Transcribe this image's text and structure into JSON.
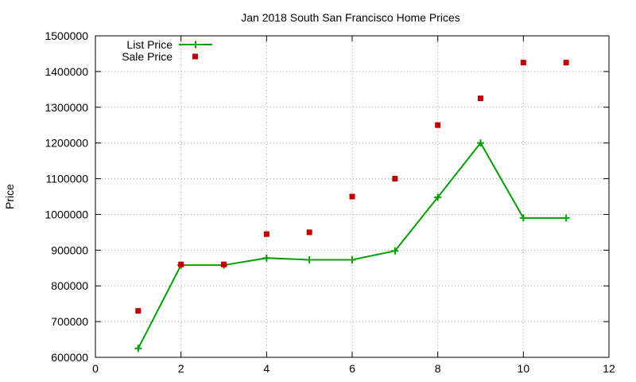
{
  "chart_data": {
    "type": "line",
    "title": "Jan 2018 South San Francisco Home Prices",
    "xlabel": "",
    "ylabel": "Price",
    "xlim": [
      0,
      12
    ],
    "ylim": [
      600000,
      1500000
    ],
    "x_ticks": [
      0,
      2,
      4,
      6,
      8,
      10,
      12
    ],
    "y_ticks": [
      600000,
      700000,
      800000,
      900000,
      1000000,
      1100000,
      1200000,
      1300000,
      1400000,
      1500000
    ],
    "grid": true,
    "legend_position": "top-left",
    "series": [
      {
        "name": "List Price",
        "style": "line-with-plus-markers",
        "color": "#00a000",
        "x": [
          1,
          2,
          3,
          4,
          5,
          6,
          7,
          8,
          9,
          10,
          11
        ],
        "values": [
          625000,
          858000,
          858000,
          878000,
          873000,
          873000,
          898000,
          1048000,
          1200000,
          990000,
          990000
        ]
      },
      {
        "name": "Sale Price",
        "style": "square-markers",
        "color": "#c00000",
        "x": [
          1,
          2,
          3,
          4,
          5,
          6,
          7,
          8,
          9,
          10,
          11
        ],
        "values": [
          730000,
          860000,
          860000,
          945000,
          950000,
          1050000,
          1100000,
          1250000,
          1325000,
          1425000,
          1425000
        ]
      }
    ]
  }
}
